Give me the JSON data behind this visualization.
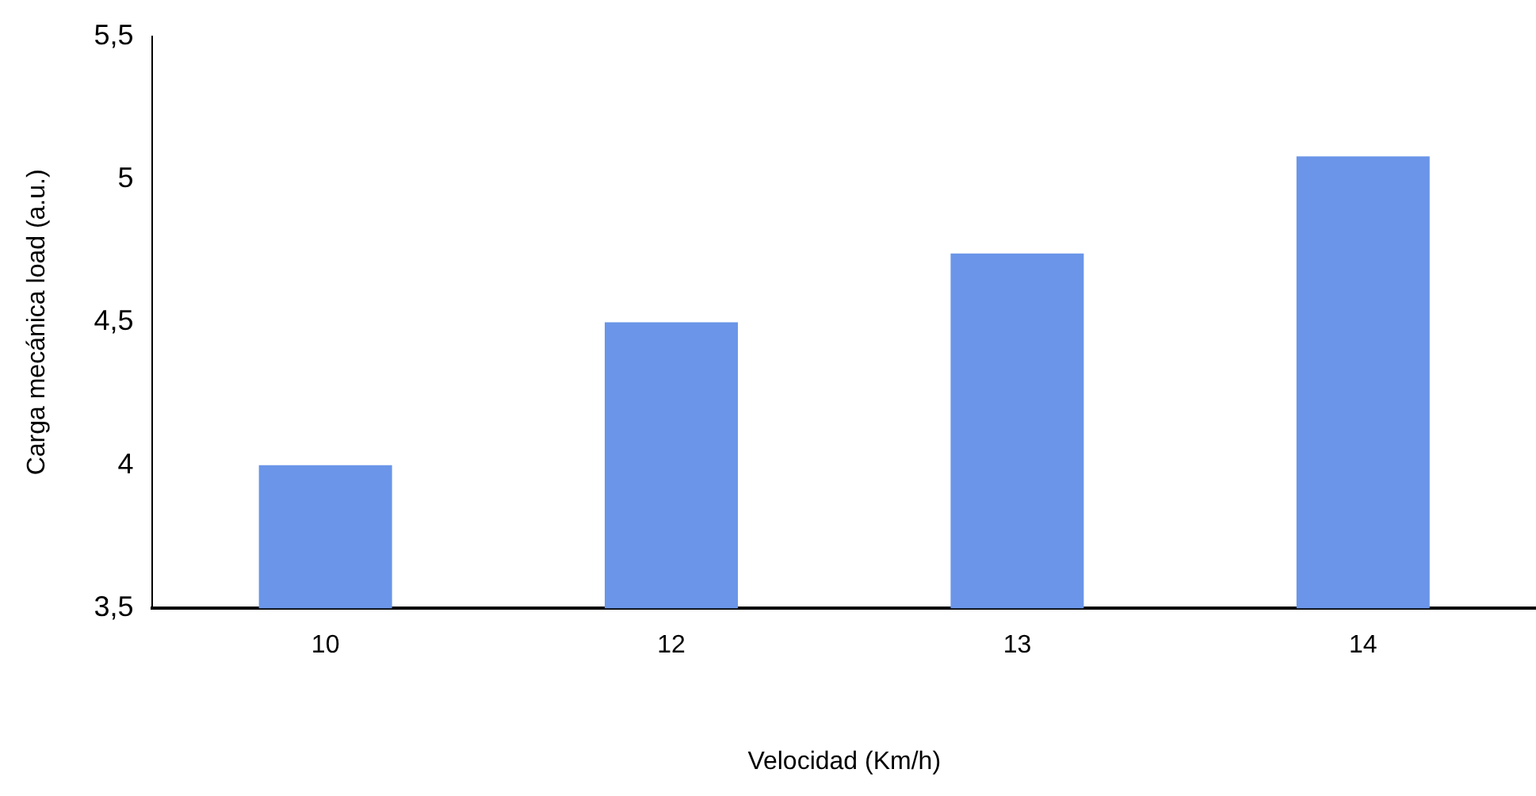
{
  "chart_data": {
    "type": "bar",
    "xlabel": "Velocidad (Km/h)",
    "ylabel": "Carga mecánica load (a.u.)",
    "categories": [
      "10",
      "12",
      "13",
      "14"
    ],
    "values": [
      4.0,
      4.5,
      4.74,
      5.08
    ],
    "color": "#6a95e8",
    "ylim": [
      3.5,
      5.5
    ],
    "yticks": [
      {
        "value": 3.5,
        "label": "3,5"
      },
      {
        "value": 4,
        "label": "4"
      },
      {
        "value": 4.5,
        "label": "4,5"
      },
      {
        "value": 5,
        "label": "5"
      },
      {
        "value": 5.5,
        "label": "5,5"
      }
    ],
    "grid": false,
    "legend": false
  }
}
